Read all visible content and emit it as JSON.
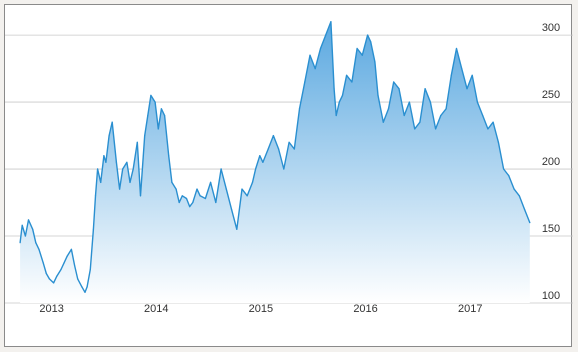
{
  "chart_data": {
    "type": "area",
    "title": "",
    "xlabel": "",
    "ylabel": "",
    "xlim": [
      2012.75,
      2017.7
    ],
    "ylim": [
      100,
      315
    ],
    "x_ticks": [
      {
        "value": 2013.1,
        "label": "2013"
      },
      {
        "value": 2014.1,
        "label": "2014"
      },
      {
        "value": 2015.1,
        "label": "2015"
      },
      {
        "value": 2016.1,
        "label": "2016"
      },
      {
        "value": 2017.1,
        "label": "2017"
      }
    ],
    "y_ticks": [
      {
        "value": 100,
        "label": "100"
      },
      {
        "value": 150,
        "label": "150"
      },
      {
        "value": 200,
        "label": "200"
      },
      {
        "value": 250,
        "label": "250"
      },
      {
        "value": 300,
        "label": "300"
      }
    ],
    "grid": "horizontal",
    "legend": "none",
    "colors": {
      "line": "#2a8fd0",
      "fill_top": "#5aa8e0",
      "fill_bottom": "#ffffff",
      "grid": "#c8c8c8",
      "axis_text": "#333333",
      "frame": "#8a8a8a"
    },
    "series": [
      {
        "x": [
          2012.78,
          2012.8,
          2012.83,
          2012.86,
          2012.9,
          2012.93,
          2012.96,
          2013.0,
          2013.03,
          2013.06,
          2013.1,
          2013.13,
          2013.17,
          2013.2,
          2013.23,
          2013.27,
          2013.3,
          2013.33,
          2013.37,
          2013.4,
          2013.42,
          2013.45,
          2013.48,
          2013.5,
          2013.52,
          2013.55,
          2013.58,
          2013.6,
          2013.63,
          2013.66,
          2013.7,
          2013.73,
          2013.76,
          2013.8,
          2013.83,
          2013.86,
          2013.9,
          2013.93,
          2013.97,
          2014.0,
          2014.03,
          2014.07,
          2014.1,
          2014.13,
          2014.16,
          2014.2,
          2014.23,
          2014.27,
          2014.3,
          2014.33,
          2014.37,
          2014.4,
          2014.43,
          2014.47,
          2014.5,
          2014.55,
          2014.6,
          2014.65,
          2014.7,
          2014.75,
          2014.8,
          2014.85,
          2014.9,
          2014.95,
          2015.0,
          2015.03,
          2015.07,
          2015.1,
          2015.15,
          2015.2,
          2015.25,
          2015.3,
          2015.35,
          2015.4,
          2015.45,
          2015.5,
          2015.55,
          2015.6,
          2015.65,
          2015.7,
          2015.75,
          2015.78,
          2015.8,
          2015.83,
          2015.86,
          2015.9,
          2015.95,
          2016.0,
          2016.05,
          2016.1,
          2016.13,
          2016.17,
          2016.2,
          2016.25,
          2016.3,
          2016.35,
          2016.4,
          2016.45,
          2016.5,
          2016.55,
          2016.6,
          2016.65,
          2016.7,
          2016.75,
          2016.8,
          2016.85,
          2016.9,
          2016.95,
          2017.0,
          2017.05,
          2017.1,
          2017.15,
          2017.2,
          2017.25,
          2017.3,
          2017.35,
          2017.4,
          2017.45,
          2017.5,
          2017.55,
          2017.6,
          2017.65
        ],
        "y": [
          145,
          158,
          150,
          162,
          155,
          145,
          140,
          130,
          122,
          118,
          115,
          120,
          125,
          130,
          135,
          140,
          128,
          118,
          112,
          108,
          112,
          125,
          155,
          180,
          200,
          190,
          210,
          205,
          225,
          235,
          205,
          185,
          200,
          205,
          190,
          200,
          220,
          180,
          225,
          240,
          255,
          250,
          230,
          245,
          240,
          210,
          190,
          185,
          175,
          180,
          178,
          172,
          175,
          185,
          180,
          178,
          190,
          175,
          200,
          185,
          170,
          155,
          185,
          180,
          190,
          200,
          210,
          205,
          215,
          225,
          215,
          200,
          220,
          215,
          245,
          265,
          285,
          275,
          290,
          300,
          310,
          260,
          240,
          250,
          255,
          270,
          265,
          290,
          285,
          300,
          295,
          280,
          255,
          235,
          245,
          265,
          260,
          240,
          250,
          230,
          235,
          260,
          250,
          230,
          240,
          245,
          270,
          290,
          275,
          260,
          270,
          250,
          240,
          230,
          235,
          220,
          200,
          195,
          185,
          180,
          170,
          160
        ]
      }
    ]
  }
}
